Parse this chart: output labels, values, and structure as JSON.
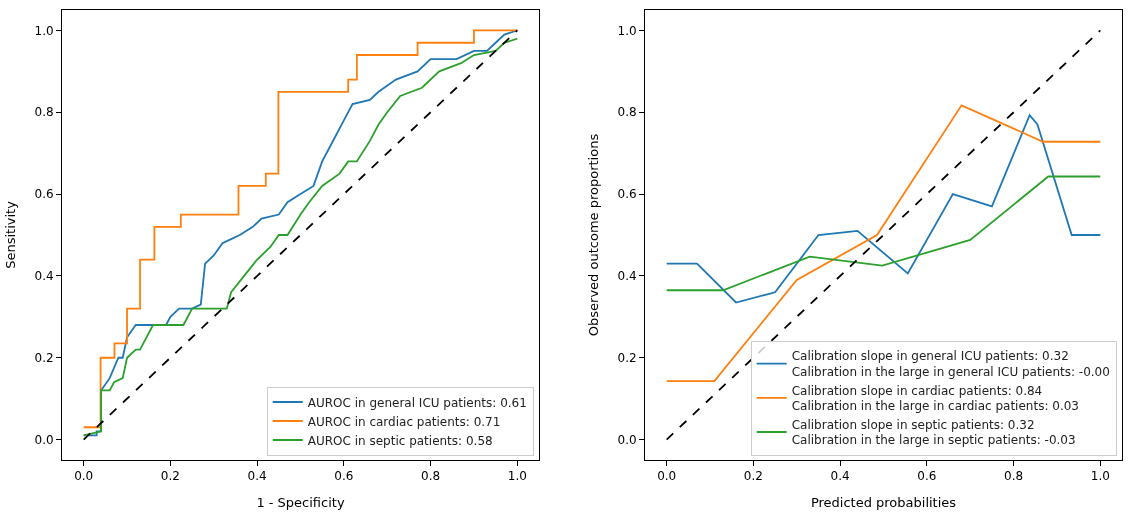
{
  "chart_data": [
    {
      "type": "line",
      "xlabel": "1 - Specificity",
      "ylabel": "Sensitivity",
      "xlim": [
        -0.05,
        1.05
      ],
      "ylim": [
        -0.05,
        1.05
      ],
      "xticks": [
        {
          "value": 0,
          "label": "0.0"
        },
        {
          "value": 0.2,
          "label": "0.2"
        },
        {
          "value": 0.4,
          "label": "0.4"
        },
        {
          "value": 0.6,
          "label": "0.6"
        },
        {
          "value": 0.8,
          "label": "0.8"
        },
        {
          "value": 1,
          "label": "1.0"
        }
      ],
      "yticks": [
        {
          "value": 0,
          "label": "0.0"
        },
        {
          "value": 0.2,
          "label": "0.2"
        },
        {
          "value": 0.4,
          "label": "0.4"
        },
        {
          "value": 0.6,
          "label": "0.6"
        },
        {
          "value": 0.8,
          "label": "0.8"
        },
        {
          "value": 1,
          "label": "1.0"
        }
      ],
      "legend": "bottom right",
      "marker": "none",
      "series": [
        {
          "name": "AUROC in general ICU patients: 0.61",
          "color": "#1f77b4",
          "x": [
            0,
            0.03,
            0.03,
            0.04,
            0.04,
            0.06,
            0.08,
            0.09,
            0.1,
            0.12,
            0.19,
            0.2,
            0.22,
            0.25,
            0.27,
            0.28,
            0.3,
            0.32,
            0.34,
            0.36,
            0.39,
            0.41,
            0.45,
            0.47,
            0.5,
            0.53,
            0.55,
            0.57,
            0.6,
            0.62,
            0.66,
            0.68,
            0.72,
            0.77,
            0.8,
            0.86,
            0.9,
            0.93,
            0.95,
            0.97,
            1
          ],
          "values": [
            0.01,
            0.01,
            0.02,
            0.02,
            0.12,
            0.15,
            0.2,
            0.2,
            0.25,
            0.28,
            0.28,
            0.3,
            0.32,
            0.32,
            0.33,
            0.43,
            0.45,
            0.48,
            0.49,
            0.5,
            0.52,
            0.54,
            0.55,
            0.58,
            0.6,
            0.62,
            0.68,
            0.72,
            0.78,
            0.82,
            0.83,
            0.85,
            0.88,
            0.9,
            0.93,
            0.93,
            0.95,
            0.95,
            0.97,
            0.99,
            1
          ]
        },
        {
          "name": "AUROC in cardiac patients: 0.71",
          "color": "#ff7f0e",
          "x": [
            0,
            0.039,
            0.039,
            0.071,
            0.071,
            0.1,
            0.1,
            0.13,
            0.13,
            0.163,
            0.163,
            0.224,
            0.224,
            0.357,
            0.357,
            0.42,
            0.42,
            0.449,
            0.449,
            0.61,
            0.61,
            0.63,
            0.63,
            0.77,
            0.77,
            0.9,
            0.9,
            1
          ],
          "values": [
            0.03,
            0.03,
            0.2,
            0.2,
            0.235,
            0.235,
            0.32,
            0.32,
            0.44,
            0.44,
            0.52,
            0.52,
            0.55,
            0.55,
            0.62,
            0.62,
            0.65,
            0.65,
            0.85,
            0.85,
            0.88,
            0.88,
            0.94,
            0.94,
            0.97,
            0.97,
            1,
            1
          ]
        },
        {
          "name": "AUROC in septic patients: 0.58",
          "color": "#2ca02c",
          "x": [
            0,
            0.04,
            0.04,
            0.06,
            0.07,
            0.09,
            0.1,
            0.12,
            0.13,
            0.14,
            0.16,
            0.23,
            0.25,
            0.28,
            0.33,
            0.34,
            0.37,
            0.4,
            0.43,
            0.45,
            0.47,
            0.5,
            0.52,
            0.55,
            0.59,
            0.61,
            0.63,
            0.66,
            0.68,
            0.7,
            0.73,
            0.78,
            0.82,
            0.87,
            0.9,
            0.95,
            0.97,
            1
          ],
          "values": [
            0.01,
            0.02,
            0.12,
            0.12,
            0.14,
            0.15,
            0.2,
            0.22,
            0.22,
            0.24,
            0.28,
            0.28,
            0.32,
            0.32,
            0.32,
            0.36,
            0.4,
            0.44,
            0.47,
            0.5,
            0.5,
            0.55,
            0.58,
            0.62,
            0.65,
            0.68,
            0.68,
            0.73,
            0.77,
            0.8,
            0.84,
            0.86,
            0.9,
            0.92,
            0.94,
            0.95,
            0.97,
            0.98
          ]
        },
        {
          "color": "#000000",
          "line_style": "dashed",
          "x": [
            0,
            1
          ],
          "values": [
            0,
            1
          ]
        }
      ]
    },
    {
      "type": "line",
      "xlabel": "Predicted probabilities",
      "ylabel": "Observed outcome proportions",
      "xlim": [
        -0.05,
        1.05
      ],
      "ylim": [
        -0.05,
        1.05
      ],
      "xticks": [
        {
          "value": 0,
          "label": "0.0"
        },
        {
          "value": 0.2,
          "label": "0.2"
        },
        {
          "value": 0.4,
          "label": "0.4"
        },
        {
          "value": 0.6,
          "label": "0.6"
        },
        {
          "value": 0.8,
          "label": "0.8"
        },
        {
          "value": 1,
          "label": "1.0"
        }
      ],
      "yticks": [
        {
          "value": 0,
          "label": "0.0"
        },
        {
          "value": 0.2,
          "label": "0.2"
        },
        {
          "value": 0.4,
          "label": "0.4"
        },
        {
          "value": 0.6,
          "label": "0.6"
        },
        {
          "value": 0.8,
          "label": "0.8"
        },
        {
          "value": 1,
          "label": "1.0"
        }
      ],
      "legend": "bottom right",
      "marker": "none",
      "series": [
        {
          "name": "Calibration slope in general ICU patients: 0.32\nCalibration in the large in general ICU patients: -0.00",
          "color": "#1f77b4",
          "x": [
            0,
            0.07,
            0.16,
            0.25,
            0.35,
            0.44,
            0.556,
            0.66,
            0.75,
            0.837,
            0.855,
            0.934,
            1
          ],
          "values": [
            0.43,
            0.43,
            0.335,
            0.36,
            0.5,
            0.51,
            0.406,
            0.6,
            0.57,
            0.793,
            0.77,
            0.5,
            0.5
          ]
        },
        {
          "name": "Calibration slope in cardiac patients: 0.84\nCalibration in the large in cardiac patients: 0.03",
          "color": "#ff7f0e",
          "x": [
            0,
            0.11,
            0.3,
            0.485,
            0.68,
            0.868,
            1
          ],
          "values": [
            0.143,
            0.143,
            0.39,
            0.5,
            0.817,
            0.728,
            0.728
          ]
        },
        {
          "name": "Calibration slope in septic patients: 0.32\nCalibration in the large in septic patients: -0.03",
          "color": "#2ca02c",
          "x": [
            0,
            0.13,
            0.33,
            0.497,
            0.7,
            0.88,
            1
          ],
          "values": [
            0.365,
            0.365,
            0.447,
            0.425,
            0.488,
            0.643,
            0.643
          ]
        },
        {
          "color": "#000000",
          "line_style": "dashed",
          "x": [
            0,
            1
          ],
          "values": [
            0,
            1
          ]
        }
      ]
    }
  ]
}
